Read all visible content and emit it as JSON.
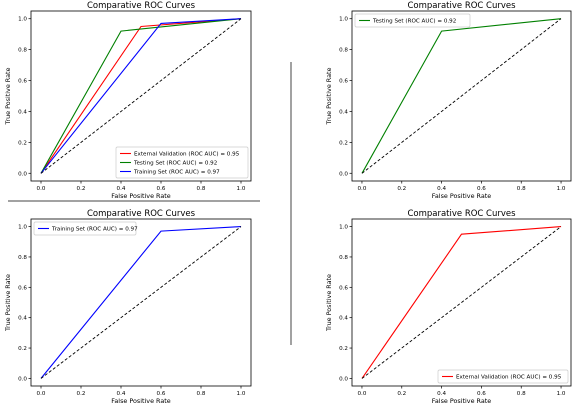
{
  "figure": {
    "divider_colors": {
      "horizontal": "#444444",
      "vertical": "#444444"
    }
  },
  "chart_data": [
    {
      "type": "line",
      "title": "Comparative ROC Curves",
      "xlabel": "False Positive Rate",
      "ylabel": "True Positive Rate",
      "xlim": [
        -0.05,
        1.05
      ],
      "ylim": [
        -0.05,
        1.05
      ],
      "xticks": [
        "0.0",
        "0.2",
        "0.4",
        "0.6",
        "0.8",
        "1.0"
      ],
      "yticks": [
        "0.0",
        "0.2",
        "0.4",
        "0.6",
        "0.8",
        "1.0"
      ],
      "grid": false,
      "legend_position": "lower-right",
      "series": [
        {
          "name": "External Validation (ROC AUC) = 0.95",
          "color": "#ff0000",
          "style": "solid",
          "x": [
            0,
            0.5,
            1
          ],
          "y": [
            0,
            0.95,
            1
          ]
        },
        {
          "name": "Testing Set (ROC AUC) = 0.92",
          "color": "#008000",
          "style": "solid",
          "x": [
            0,
            0.4,
            1
          ],
          "y": [
            0,
            0.92,
            1
          ]
        },
        {
          "name": "Training Set (ROC AUC) = 0.97",
          "color": "#0000ff",
          "style": "solid",
          "x": [
            0,
            0.6,
            1
          ],
          "y": [
            0,
            0.97,
            1
          ]
        },
        {
          "color": "#000000",
          "style": "dashed",
          "x": [
            0,
            1
          ],
          "y": [
            0,
            1
          ]
        }
      ]
    },
    {
      "type": "line",
      "title": "Comparative ROC Curves",
      "xlabel": "False Positive Rate",
      "ylabel": "True Positive Rate",
      "xlim": [
        -0.05,
        1.05
      ],
      "ylim": [
        -0.05,
        1.05
      ],
      "xticks": [
        "0.0",
        "0.2",
        "0.4",
        "0.6",
        "0.8",
        "1.0"
      ],
      "yticks": [
        "0.0",
        "0.2",
        "0.4",
        "0.6",
        "0.8",
        "1.0"
      ],
      "grid": false,
      "legend_position": "upper-left",
      "series": [
        {
          "name": "Testing Set (ROC AUC) = 0.92",
          "color": "#008000",
          "style": "solid",
          "x": [
            0,
            0.4,
            1
          ],
          "y": [
            0,
            0.92,
            1
          ]
        },
        {
          "color": "#000000",
          "style": "dashed",
          "x": [
            0,
            1
          ],
          "y": [
            0,
            1
          ]
        }
      ]
    },
    {
      "type": "line",
      "title": "Comparative ROC Curves",
      "xlabel": "False Positive Rate",
      "ylabel": "True Positive Rate",
      "xlim": [
        -0.05,
        1.05
      ],
      "ylim": [
        -0.05,
        1.05
      ],
      "xticks": [
        "0.0",
        "0.2",
        "0.4",
        "0.6",
        "0.8",
        "1.0"
      ],
      "yticks": [
        "0.0",
        "0.2",
        "0.4",
        "0.6",
        "0.8",
        "1.0"
      ],
      "grid": false,
      "legend_position": "upper-left",
      "series": [
        {
          "name": "Training Set (ROC AUC) = 0.97",
          "color": "#0000ff",
          "style": "solid",
          "x": [
            0,
            0.6,
            1
          ],
          "y": [
            0,
            0.97,
            1
          ]
        },
        {
          "color": "#000000",
          "style": "dashed",
          "x": [
            0,
            1
          ],
          "y": [
            0,
            1
          ]
        }
      ]
    },
    {
      "type": "line",
      "title": "Comparative ROC Curves",
      "xlabel": "False Positive Rate",
      "ylabel": "True Positive Rate",
      "xlim": [
        -0.05,
        1.05
      ],
      "ylim": [
        -0.05,
        1.05
      ],
      "xticks": [
        "0.0",
        "0.2",
        "0.4",
        "0.6",
        "0.8",
        "1.0"
      ],
      "yticks": [
        "0.0",
        "0.2",
        "0.4",
        "0.6",
        "0.8",
        "1.0"
      ],
      "grid": false,
      "legend_position": "lower-right",
      "series": [
        {
          "name": "External Validation (ROC AUC) = 0.95",
          "color": "#ff0000",
          "style": "solid",
          "x": [
            0,
            0.5,
            1
          ],
          "y": [
            0,
            0.95,
            1
          ]
        },
        {
          "color": "#000000",
          "style": "dashed",
          "x": [
            0,
            1
          ],
          "y": [
            0,
            1
          ]
        }
      ]
    }
  ]
}
